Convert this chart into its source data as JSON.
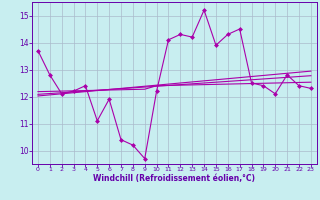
{
  "title": "",
  "xlabel": "Windchill (Refroidissement éolien,°C)",
  "ylabel": "",
  "bg_color": "#c8eef0",
  "plot_bg_color": "#c8eef0",
  "grid_color": "#aabbcc",
  "line_color": "#aa00aa",
  "spine_color": "#6600aa",
  "tick_color": "#6600aa",
  "label_color": "#6600aa",
  "hours": [
    0,
    1,
    2,
    3,
    4,
    5,
    6,
    7,
    8,
    9,
    10,
    11,
    12,
    13,
    14,
    15,
    16,
    17,
    18,
    19,
    20,
    21,
    22,
    23
  ],
  "main_data": [
    13.7,
    12.8,
    12.1,
    12.2,
    12.4,
    11.1,
    11.9,
    10.4,
    10.2,
    9.7,
    12.2,
    14.1,
    14.3,
    14.2,
    15.2,
    13.9,
    14.3,
    14.5,
    12.5,
    12.4,
    12.1,
    12.8,
    12.4,
    12.3
  ],
  "reg_line1": [
    12.02,
    12.06,
    12.1,
    12.14,
    12.18,
    12.22,
    12.26,
    12.3,
    12.34,
    12.38,
    12.42,
    12.46,
    12.5,
    12.54,
    12.58,
    12.62,
    12.66,
    12.7,
    12.74,
    12.78,
    12.82,
    12.86,
    12.9,
    12.94
  ],
  "reg_line2": [
    12.08,
    12.11,
    12.14,
    12.17,
    12.2,
    12.23,
    12.26,
    12.29,
    12.32,
    12.35,
    12.38,
    12.41,
    12.44,
    12.47,
    12.5,
    12.53,
    12.56,
    12.59,
    12.62,
    12.65,
    12.68,
    12.71,
    12.74,
    12.77
  ],
  "flat_line": [
    12.18,
    12.19,
    12.2,
    12.21,
    12.22,
    12.23,
    12.24,
    12.25,
    12.26,
    12.27,
    12.4,
    12.41,
    12.42,
    12.43,
    12.44,
    12.45,
    12.46,
    12.47,
    12.48,
    12.49,
    12.5,
    12.51,
    12.52,
    12.53
  ],
  "ylim": [
    9.5,
    15.5
  ],
  "yticks": [
    10,
    11,
    12,
    13,
    14,
    15
  ],
  "xlim": [
    -0.5,
    23.5
  ],
  "markersize": 2.5,
  "linewidth": 0.8
}
